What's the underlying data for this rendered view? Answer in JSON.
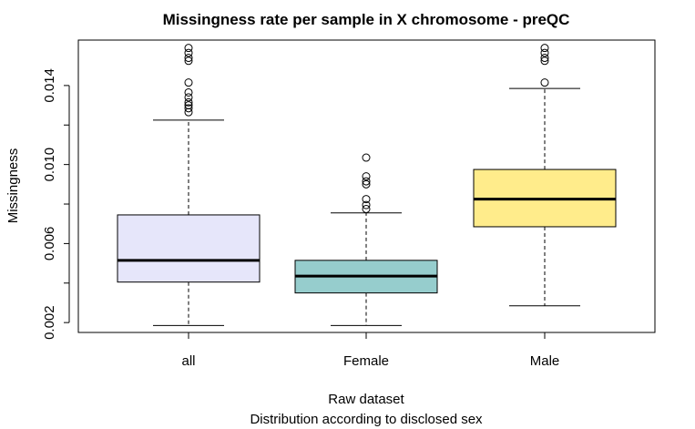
{
  "chart_data": {
    "type": "boxplot",
    "title": "Missingness rate per sample in X chromosome - preQC",
    "xlabel": "Raw dataset",
    "xlabel2": "Distribution according to disclosed sex",
    "ylabel": "Missingness",
    "ylim": [
      0.0015,
      0.0163
    ],
    "yticks": [
      0.002,
      0.004,
      0.006,
      0.008,
      0.01,
      0.012,
      0.014
    ],
    "ytick_labels": [
      "0.002",
      "0.006",
      "0.010",
      "0.014"
    ],
    "categories": [
      "all",
      "Female",
      "Male"
    ],
    "boxes": [
      {
        "name": "all",
        "color": "#E6E6FA",
        "whisker_low": 0.00185,
        "q1": 0.00405,
        "median": 0.00515,
        "q3": 0.00745,
        "whisker_high": 0.01225,
        "outliers": [
          0.01265,
          0.01285,
          0.013,
          0.01315,
          0.0134,
          0.01365,
          0.01415,
          0.01525,
          0.0154,
          0.01565,
          0.0159
        ]
      },
      {
        "name": "Female",
        "color": "#96CDCD",
        "whisker_low": 0.00185,
        "q1": 0.0035,
        "median": 0.00435,
        "q3": 0.00515,
        "whisker_high": 0.00755,
        "outliers": [
          0.00775,
          0.00795,
          0.00825,
          0.009,
          0.00915,
          0.0094,
          0.01035
        ]
      },
      {
        "name": "Male",
        "color": "#FFEC8B",
        "whisker_low": 0.00285,
        "q1": 0.00685,
        "median": 0.00825,
        "q3": 0.00975,
        "whisker_high": 0.01385,
        "outliers": [
          0.01415,
          0.01525,
          0.0154,
          0.01565,
          0.0159
        ]
      }
    ]
  }
}
